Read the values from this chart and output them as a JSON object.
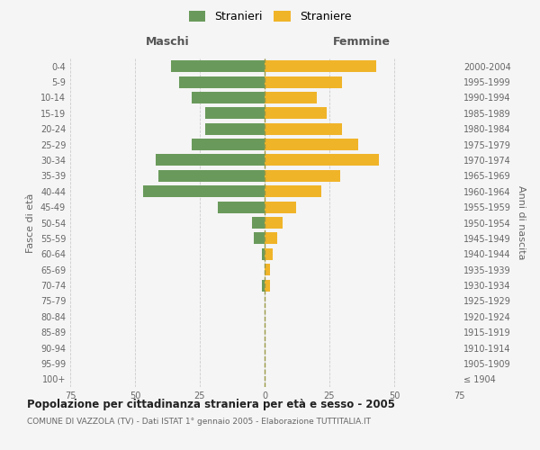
{
  "age_groups": [
    "100+",
    "95-99",
    "90-94",
    "85-89",
    "80-84",
    "75-79",
    "70-74",
    "65-69",
    "60-64",
    "55-59",
    "50-54",
    "45-49",
    "40-44",
    "35-39",
    "30-34",
    "25-29",
    "20-24",
    "15-19",
    "10-14",
    "5-9",
    "0-4"
  ],
  "birth_years": [
    "≤ 1904",
    "1905-1909",
    "1910-1914",
    "1915-1919",
    "1920-1924",
    "1925-1929",
    "1930-1934",
    "1935-1939",
    "1940-1944",
    "1945-1949",
    "1950-1954",
    "1955-1959",
    "1960-1964",
    "1965-1969",
    "1970-1974",
    "1975-1979",
    "1980-1984",
    "1985-1989",
    "1990-1994",
    "1995-1999",
    "2000-2004"
  ],
  "maschi": [
    0,
    0,
    0,
    0,
    0,
    0,
    1,
    0,
    1,
    4,
    5,
    18,
    47,
    41,
    42,
    28,
    23,
    23,
    28,
    33,
    36
  ],
  "femmine": [
    0,
    0,
    0,
    0,
    0,
    0,
    2,
    2,
    3,
    5,
    7,
    12,
    22,
    29,
    44,
    36,
    30,
    24,
    20,
    30,
    43
  ],
  "color_maschi": "#6a9a5b",
  "color_femmine": "#f0b429",
  "title": "Popolazione per cittadinanza straniera per età e sesso - 2005",
  "subtitle": "COMUNE DI VAZZOLA (TV) - Dati ISTAT 1° gennaio 2005 - Elaborazione TUTTITALIA.IT",
  "ylabel_left": "Fasce di età",
  "ylabel_right": "Anni di nascita",
  "xlabel_maschi": "Maschi",
  "xlabel_femmine": "Femmine",
  "legend_maschi": "Stranieri",
  "legend_femmine": "Straniere",
  "xlim": 75,
  "background_color": "#f5f5f5",
  "grid_color": "#cccccc",
  "vline_color": "#999944"
}
